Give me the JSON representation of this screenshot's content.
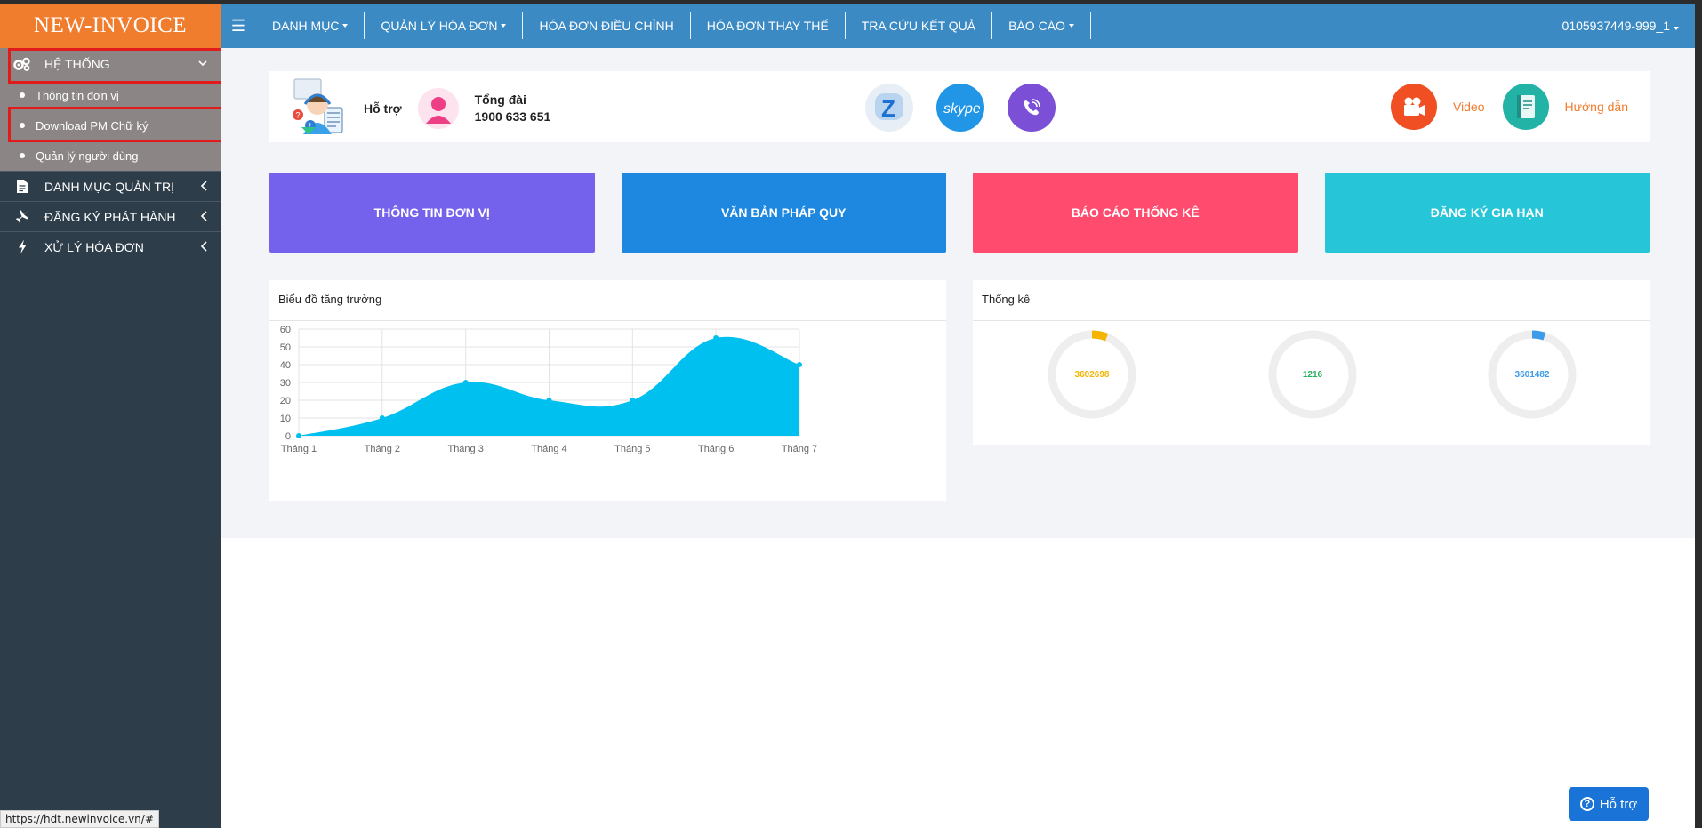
{
  "brand": "NEW-INVOICE",
  "sidebar": {
    "section": {
      "label": "HỆ THỐNG",
      "icon": "gears-icon"
    },
    "sub_items": [
      {
        "label": "Thông tin đơn vị"
      },
      {
        "label": "Download PM Chữ ký"
      },
      {
        "label": "Quản lý người dùng"
      }
    ],
    "items": [
      {
        "label": "DANH MỤC QUẢN TRỊ",
        "icon": "document-icon"
      },
      {
        "label": "ĐĂNG KÝ PHÁT HÀNH",
        "icon": "plane-icon"
      },
      {
        "label": "XỬ LÝ HÓA ĐƠN",
        "icon": "bolt-icon"
      }
    ]
  },
  "topnav": {
    "items": [
      {
        "label": "DANH MỤC"
      },
      {
        "label": "QUẢN LÝ HÓA ĐƠN"
      },
      {
        "label": "HÓA ĐƠN ĐIỀU CHỈNH"
      },
      {
        "label": "HÓA ĐƠN THAY THẾ"
      },
      {
        "label": "TRA CỨU KẾT QUẢ"
      },
      {
        "label": "BÁO CÁO"
      }
    ],
    "user": "0105937449-999_1"
  },
  "support": {
    "label": "Hỗ trợ",
    "hotline_title": "Tổng đài",
    "hotline_number": "1900 633 651",
    "video_label": "Video",
    "guide_label": "Hướng dẫn"
  },
  "tiles": [
    {
      "label": "THÔNG TIN ĐƠN VỊ",
      "color": "#7562ec"
    },
    {
      "label": "VĂN BẢN PHÁP QUY",
      "color": "#1e88e0"
    },
    {
      "label": "BÁO CÁO THỐNG KÊ",
      "color": "#ff4b6e"
    },
    {
      "label": "ĐĂNG KÝ GIA HẠN",
      "color": "#26c6d8"
    }
  ],
  "chart": {
    "title": "Biểu đồ tăng trưởng"
  },
  "chart_data": {
    "type": "area",
    "categories": [
      "Tháng 1",
      "Tháng 2",
      "Tháng 3",
      "Tháng 4",
      "Tháng 5",
      "Tháng 6",
      "Tháng 7"
    ],
    "values": [
      0,
      10,
      30,
      20,
      20,
      55,
      40
    ],
    "ylim": [
      0,
      60
    ],
    "yticks": [
      0,
      10,
      20,
      30,
      40,
      50,
      60
    ],
    "color": "#00c0ef",
    "grid": true
  },
  "stats": {
    "title": "Thống kê",
    "donuts": [
      {
        "value": "3602698",
        "color": "#f4b400",
        "fraction": 0.06
      },
      {
        "value": "1216",
        "color": "#27ae60",
        "fraction": 0.0
      },
      {
        "value": "3601482",
        "color": "#3d9be9",
        "fraction": 0.05
      }
    ]
  },
  "status_url": "https://hdt.newinvoice.vn/#",
  "help_button": "Hỗ trợ"
}
